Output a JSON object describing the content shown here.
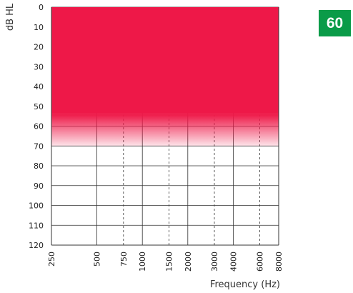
{
  "badge": {
    "value": "60",
    "color": "#0a9b48"
  },
  "chart_data": {
    "type": "area",
    "ylabel": "dB HL",
    "xlabel": "Frequency (Hz)",
    "y_ticks": [
      "0",
      "10",
      "20",
      "30",
      "40",
      "50",
      "60",
      "70",
      "80",
      "90",
      "100",
      "110",
      "120"
    ],
    "ylim": [
      0,
      120
    ],
    "y_inverted": true,
    "x_scale": "log",
    "x_ticks": [
      {
        "label": "250",
        "value": 250,
        "style": "solid"
      },
      {
        "label": "500",
        "value": 500,
        "style": "solid"
      },
      {
        "label": "750",
        "value": 750,
        "style": "dashed"
      },
      {
        "label": "1000",
        "value": 1000,
        "style": "solid"
      },
      {
        "label": "1500",
        "value": 1500,
        "style": "dashed"
      },
      {
        "label": "2000",
        "value": 2000,
        "style": "solid"
      },
      {
        "label": "3000",
        "value": 3000,
        "style": "dashed"
      },
      {
        "label": "4000",
        "value": 4000,
        "style": "solid"
      },
      {
        "label": "6000",
        "value": 6000,
        "style": "dashed"
      },
      {
        "label": "8000",
        "value": 8000,
        "style": "solid"
      }
    ],
    "xlim": [
      250,
      8000
    ],
    "shaded_region": {
      "from_db": 0,
      "solid_to_db": 54,
      "fade_to_db": 70,
      "color": "#ee1848"
    },
    "grid": true
  }
}
